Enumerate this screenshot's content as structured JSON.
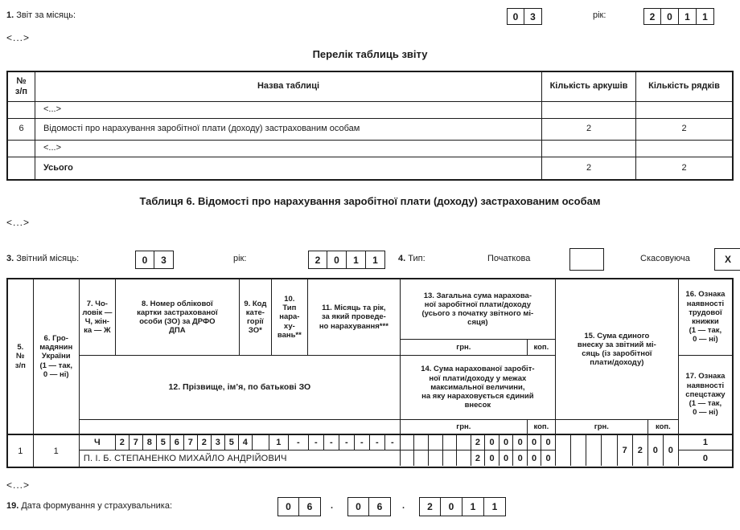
{
  "ellipsis": "<...>",
  "report": {
    "num": "1.",
    "label": "Звіт за місяць:",
    "month_boxes": [
      "0",
      "3"
    ],
    "year_label": "рік:",
    "year_boxes": [
      "2",
      "0",
      "1",
      "1"
    ]
  },
  "tables_list": {
    "title": "Перелік таблиць звіту",
    "headers": {
      "num": "№\nз/п",
      "name": "Назва таблиці",
      "sheets": "Кількість аркушів",
      "lines": "Кількість рядків"
    },
    "rows": [
      {
        "num": "",
        "name": "<...>",
        "sheets": "",
        "lines": ""
      },
      {
        "num": "6",
        "name": "Відомості про нарахування заробітної плати (доходу) застрахованим особам",
        "sheets": "2",
        "lines": "2"
      },
      {
        "num": "",
        "name": "<...>",
        "sheets": "",
        "lines": ""
      },
      {
        "num": "",
        "name": "Усього",
        "sheets": "2",
        "lines": "2"
      }
    ]
  },
  "table6": {
    "title": "Таблиця 6. Відомості про нарахування заробітної плати (доходу) застрахованим особам",
    "report_month": {
      "num": "3.",
      "label": "Звітний місяць:",
      "month_boxes": [
        "0",
        "3"
      ],
      "year_label": "рік:",
      "year_boxes": [
        "2",
        "0",
        "1",
        "1"
      ]
    },
    "type": {
      "num": "4.",
      "label": "Тип:",
      "initial_label": "Початкова",
      "initial_box": [
        ""
      ],
      "cancel_label": "Скасовуюча",
      "cancel_box": [
        "X"
      ]
    },
    "head": {
      "c5": "5.\n№\nз/п",
      "c6": "6. Гро-\nмадянин\nУкраїни\n(1 — так,\n0 — ні)",
      "c7": "7. Чо-\nловік —\nЧ, жін-\nка — Ж",
      "c8": "8. Номер облікової\nкартки застрахованої\nособи (ЗО) за ДРФО\nДПА",
      "c9": "9. Код\nкате-\nгорії\nЗО*",
      "c10": "10.\nТип\nнара-\nху-\nвань**",
      "c11": "11. Місяць та рік,\nза який проведе-\nно нарахування***",
      "c12": "12. Прізвище, ім’я, по батькові ЗО",
      "c13": "13. Загальна сума нарахова-\nної заробітної плати/доходу\n(усього з початку звітного мі-\nсяця)",
      "c14": "14. Сума нарахованої заробіт-\nної плати/доходу у межах\nмаксимальної величини,\nна яку нараховується єдиний\nвнесок",
      "c15": "15. Сума єдиного\nвнеску за звітний мі-\nсяць (із заробітної\nплати/доходу)",
      "c16": "16. Ознака\nнаявності\nтрудової\nкнижки\n(1 — так,\n0 — ні)",
      "c17": "17. Ознака\nнаявності\nспецстажу\n(1 — так,\n0 — ні)",
      "hrn": "грн.",
      "kop": "коп."
    },
    "row": {
      "num": "1",
      "citizen": "1",
      "sex": "Ч",
      "drfo_boxes": [
        "2",
        "7",
        "8",
        "5",
        "6",
        "7",
        "2",
        "3",
        "5",
        "4"
      ],
      "gap_box": [
        ""
      ],
      "category_boxes": [
        "1"
      ],
      "accrual_type_boxes": [
        "-"
      ],
      "month_year_boxes": [
        "-",
        "-",
        "-",
        "-",
        "-",
        "-"
      ],
      "total_hrn_boxes": [
        "",
        "",
        "",
        "",
        "",
        "2",
        "0",
        "0",
        "0"
      ],
      "total_kop_boxes": [
        "0",
        "0"
      ],
      "pib": "П. І. Б. СТЕПАНЕНКО МИХАЙЛО АНДРІЙОВИЧ",
      "max_hrn_boxes": [
        "",
        "",
        "",
        "",
        "",
        "2",
        "0",
        "0",
        "0"
      ],
      "max_kop_boxes": [
        "0",
        "0"
      ],
      "esv_hrn_boxes": [
        "",
        "",
        "",
        "",
        "7",
        "2"
      ],
      "esv_kop_boxes": [
        "0",
        "0"
      ],
      "workbook_flag": "1",
      "specstazh_flag": "0"
    }
  },
  "footer": {
    "num": "19.",
    "label": "Дата формування у страхувальника:",
    "day_boxes": [
      "0",
      "6"
    ],
    "month_boxes": [
      "0",
      "6"
    ],
    "year_boxes": [
      "2",
      "0",
      "1",
      "1"
    ],
    "separator": "."
  }
}
